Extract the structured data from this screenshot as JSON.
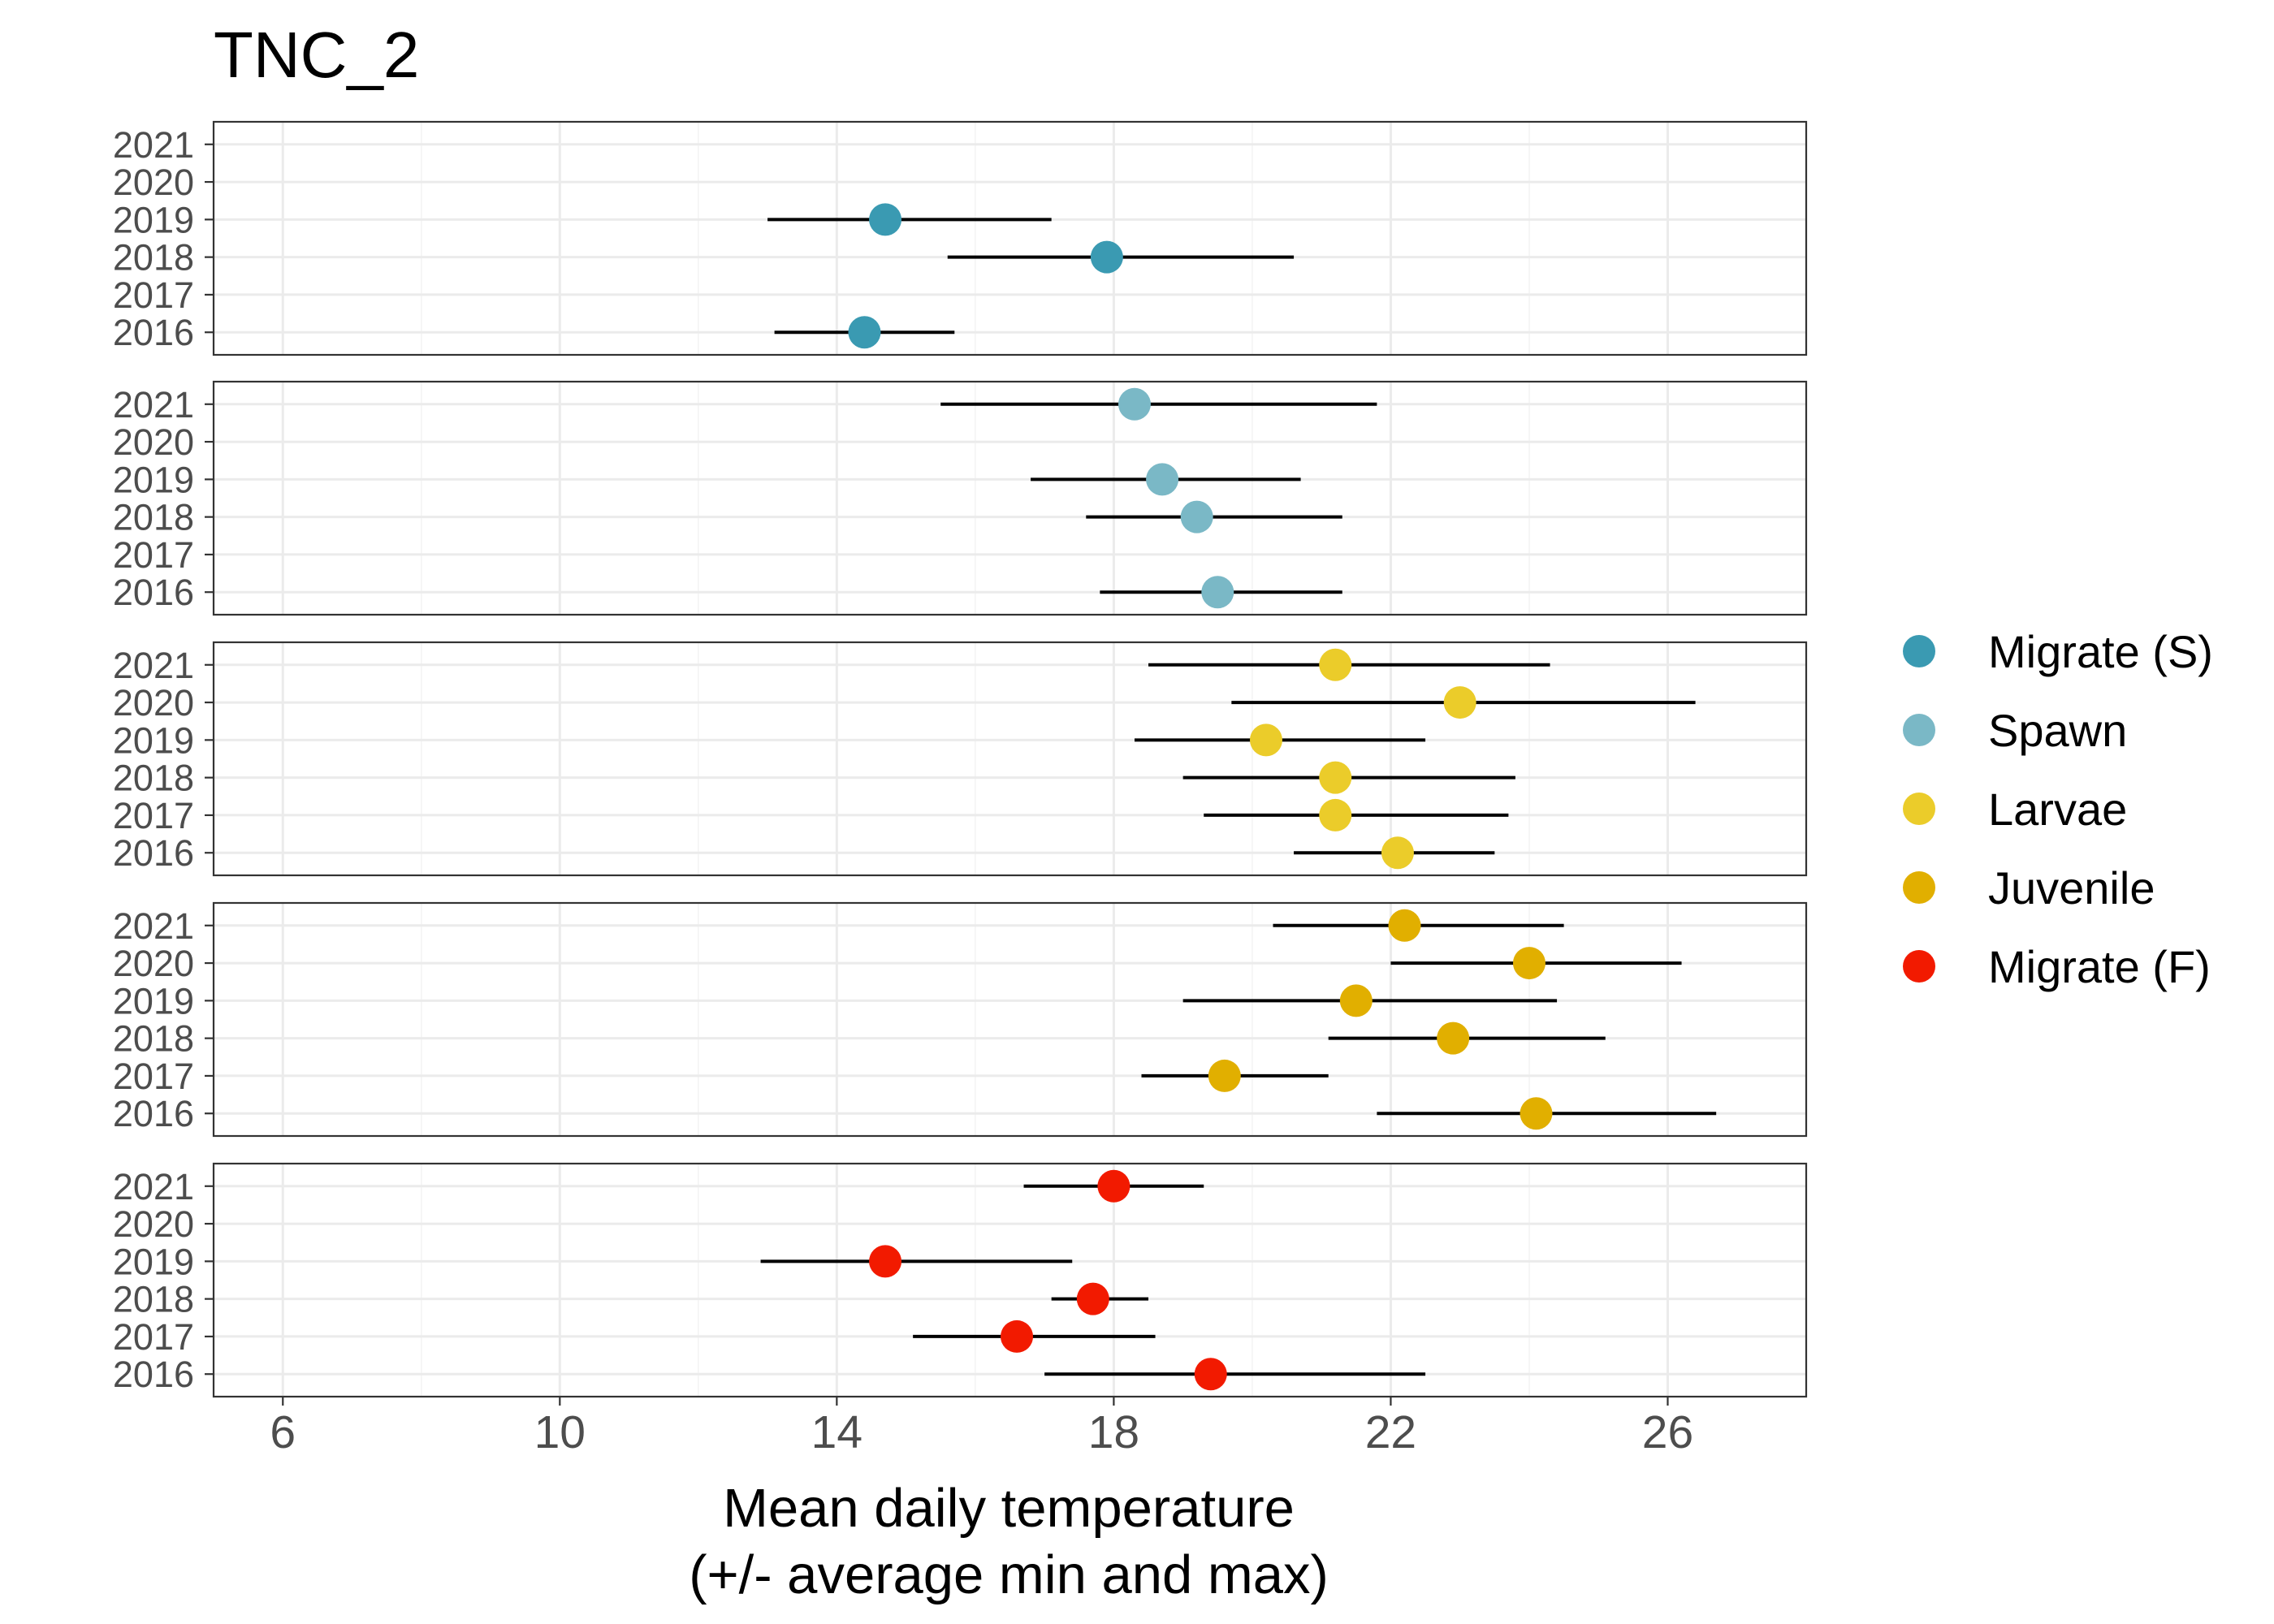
{
  "chart_data": {
    "type": "pointrange",
    "title": "TNC_2",
    "xlabel": [
      "Mean daily temperature",
      "(+/- average min and max)"
    ],
    "ylabel": "",
    "xlim": [
      5,
      28
    ],
    "x_ticks": [
      6,
      10,
      14,
      18,
      22,
      26
    ],
    "y_categories": [
      "2016",
      "2017",
      "2018",
      "2019",
      "2020",
      "2021"
    ],
    "grid": true,
    "legend_position": "right",
    "series": [
      {
        "name": "Migrate (S)",
        "color": "#3A9AB2",
        "points": [
          {
            "year": "2019",
            "mean": 14.7,
            "min": 13.0,
            "max": 17.1
          },
          {
            "year": "2018",
            "mean": 17.9,
            "min": 15.6,
            "max": 20.6
          },
          {
            "year": "2016",
            "mean": 14.4,
            "min": 13.1,
            "max": 15.7
          }
        ]
      },
      {
        "name": "Spawn",
        "color": "#7AB8C6",
        "points": [
          {
            "year": "2021",
            "mean": 18.3,
            "min": 15.5,
            "max": 21.8
          },
          {
            "year": "2019",
            "mean": 18.7,
            "min": 16.8,
            "max": 20.7
          },
          {
            "year": "2018",
            "mean": 19.2,
            "min": 17.6,
            "max": 21.3
          },
          {
            "year": "2016",
            "mean": 19.5,
            "min": 17.8,
            "max": 21.3
          }
        ]
      },
      {
        "name": "Larvae",
        "color": "#EBCC2A",
        "points": [
          {
            "year": "2021",
            "mean": 21.2,
            "min": 18.5,
            "max": 24.3
          },
          {
            "year": "2020",
            "mean": 23.0,
            "min": 19.7,
            "max": 26.4
          },
          {
            "year": "2019",
            "mean": 20.2,
            "min": 18.3,
            "max": 22.5
          },
          {
            "year": "2018",
            "mean": 21.2,
            "min": 19.0,
            "max": 23.8
          },
          {
            "year": "2017",
            "mean": 21.2,
            "min": 19.3,
            "max": 23.7
          },
          {
            "year": "2016",
            "mean": 22.1,
            "min": 20.6,
            "max": 23.5
          }
        ]
      },
      {
        "name": "Juvenile",
        "color": "#E1AF00",
        "points": [
          {
            "year": "2021",
            "mean": 22.2,
            "min": 20.3,
            "max": 24.5
          },
          {
            "year": "2020",
            "mean": 24.0,
            "min": 22.0,
            "max": 26.2
          },
          {
            "year": "2019",
            "mean": 21.5,
            "min": 19.0,
            "max": 24.4
          },
          {
            "year": "2018",
            "mean": 22.9,
            "min": 21.1,
            "max": 25.1
          },
          {
            "year": "2017",
            "mean": 19.6,
            "min": 18.4,
            "max": 21.1
          },
          {
            "year": "2016",
            "mean": 24.1,
            "min": 21.8,
            "max": 26.7
          }
        ]
      },
      {
        "name": "Migrate (F)",
        "color": "#F21A00",
        "points": [
          {
            "year": "2021",
            "mean": 18.0,
            "min": 16.7,
            "max": 19.3
          },
          {
            "year": "2019",
            "mean": 14.7,
            "min": 12.9,
            "max": 17.4
          },
          {
            "year": "2018",
            "mean": 17.7,
            "min": 17.1,
            "max": 18.5
          },
          {
            "year": "2017",
            "mean": 16.6,
            "min": 15.1,
            "max": 18.6
          },
          {
            "year": "2016",
            "mean": 19.4,
            "min": 17.0,
            "max": 22.5
          }
        ]
      }
    ]
  }
}
